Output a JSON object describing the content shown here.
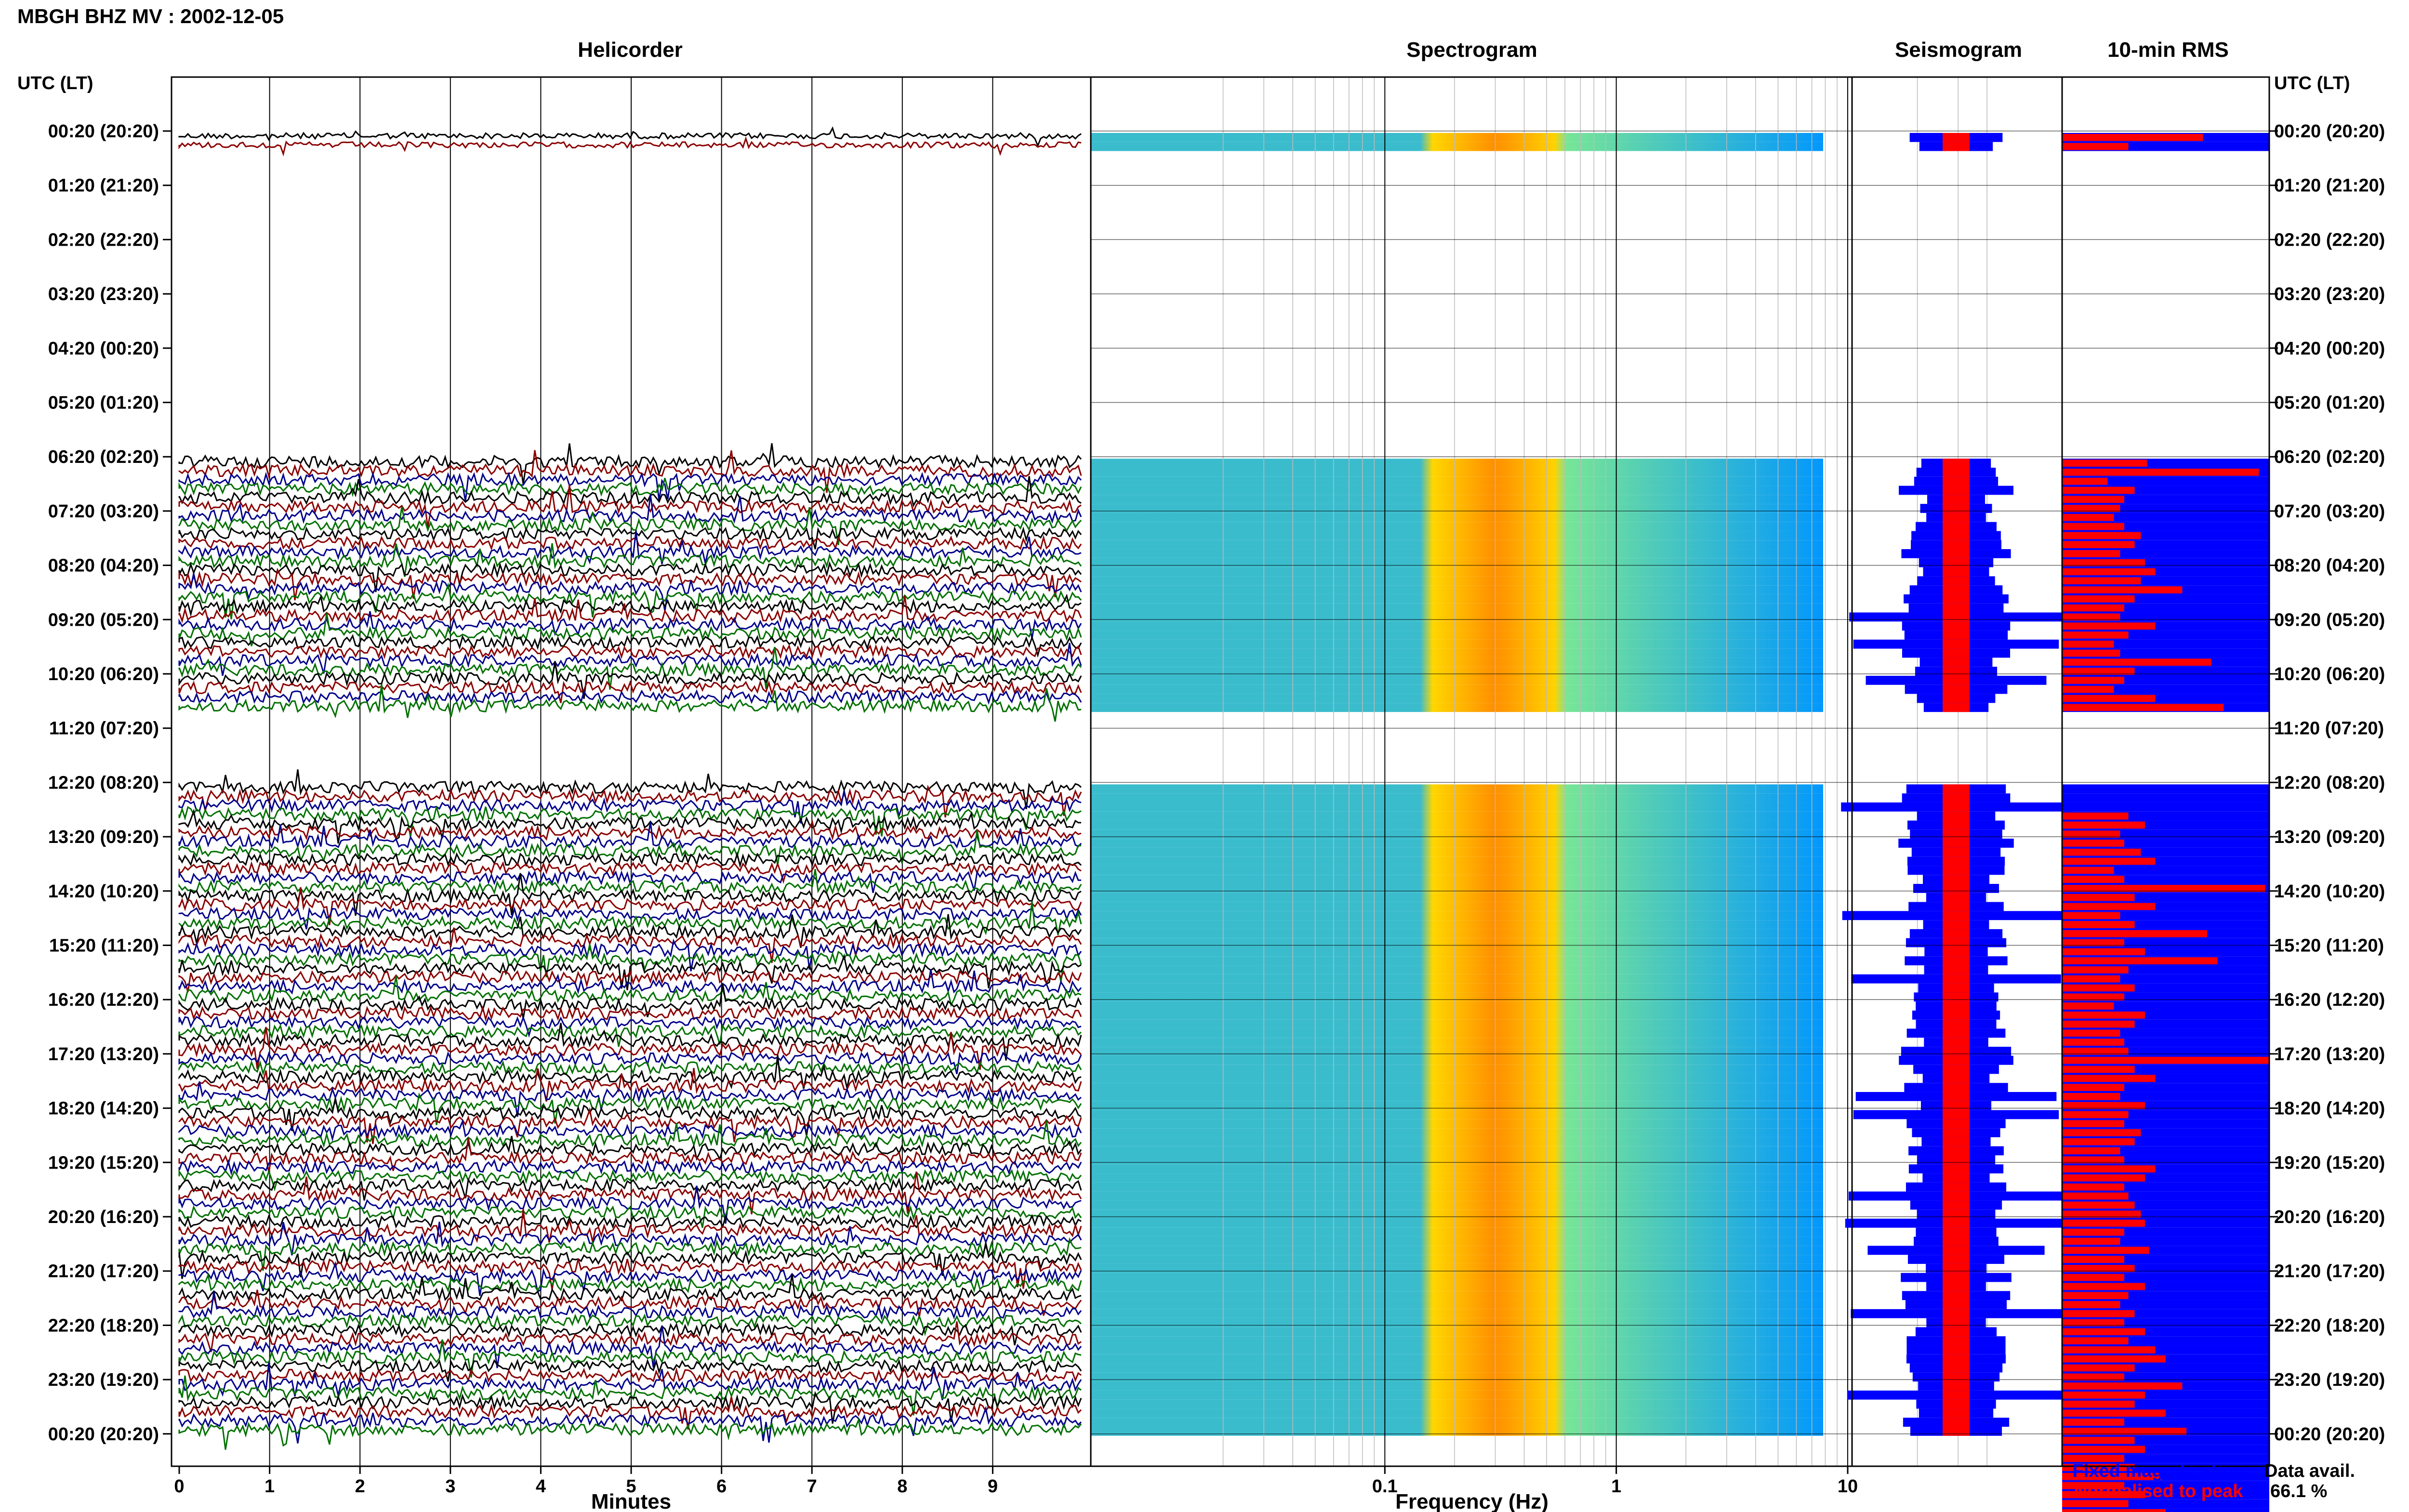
{
  "header": {
    "station_title": "MBGH BHZ MV : 2002-12-05",
    "utc_left": "UTC (LT)",
    "utc_right": "UTC (LT)"
  },
  "panels": {
    "helicorder": "Helicorder",
    "spectrogram": "Spectrogram",
    "seismogram": "Seismogram",
    "rms": "10-min RMS"
  },
  "time_labels": [
    "00:20 (20:20)",
    "01:20 (21:20)",
    "02:20 (22:20)",
    "03:20 (23:20)",
    "04:20 (00:20)",
    "05:20 (01:20)",
    "06:20 (02:20)",
    "07:20 (03:20)",
    "08:20 (04:20)",
    "09:20 (05:20)",
    "10:20 (06:20)",
    "11:20 (07:20)",
    "12:20 (08:20)",
    "13:20 (09:20)",
    "14:20 (10:20)",
    "15:20 (11:20)",
    "16:20 (12:20)",
    "17:20 (13:20)",
    "18:20 (14:20)",
    "19:20 (15:20)",
    "20:20 (16:20)",
    "21:20 (17:20)",
    "22:20 (18:20)",
    "23:20 (19:20)",
    "00:20 (20:20)"
  ],
  "axes": {
    "minutes_ticks": [
      "0",
      "1",
      "2",
      "3",
      "4",
      "5",
      "6",
      "7",
      "8",
      "9"
    ],
    "minutes_label": "Minutes",
    "frequency_ticks": [
      "0.1",
      "1",
      "10"
    ],
    "frequency_label": "Frequency (Hz)"
  },
  "legend": {
    "fixed": "Fixed magnification",
    "normalised": "Normalised to peak",
    "fixed_color": "#0000ff",
    "normalised_color": "#ff0000"
  },
  "data_avail": {
    "label": "Data avail.",
    "value": "66.1 %"
  },
  "colors": {
    "trace_cycle": [
      "#000000",
      "#8b0000",
      "#00008b",
      "#007000"
    ],
    "spectrogram_low": "#0000a0",
    "spectrogram_high": "#ff7f00",
    "rms_fixed": "#0000ff",
    "rms_normalised": "#ff0000"
  },
  "chart_data": {
    "type": "heatmap",
    "station": "MBGH BHZ MV",
    "date": "2002-12-05",
    "hour_rows": [
      "00:20",
      "01:20",
      "02:20",
      "03:20",
      "04:20",
      "05:20",
      "06:20",
      "07:20",
      "08:20",
      "09:20",
      "10:20",
      "11:20",
      "12:20",
      "13:20",
      "14:20",
      "15:20",
      "16:20",
      "17:20",
      "18:20",
      "19:20",
      "20:20",
      "21:20",
      "22:20",
      "23:20",
      "00:20"
    ],
    "xlabel_helicorder": "Minutes",
    "xlim_helicorder": [
      0,
      10
    ],
    "xlabel_spectrogram": "Frequency (Hz)",
    "xlim_spectrogram_hz": [
      0.02,
      40
    ],
    "spectrogram_log_scale": true,
    "data_available_percent": 66.1,
    "data_gaps_utc": [
      [
        "00:40",
        "06:20"
      ],
      [
        "11:00",
        "12:20"
      ]
    ],
    "rms_normalised_fraction_per_10min": [
      0.68,
      0.32,
      0,
      0,
      0,
      0,
      0,
      0,
      0,
      0,
      0,
      0,
      0,
      0,
      0,
      0,
      0,
      0,
      0,
      0,
      0,
      0,
      0,
      0,
      0,
      0,
      0,
      0,
      0,
      0,
      0,
      0,
      0,
      0,
      0,
      0,
      0.41,
      0.95,
      0.22,
      0.35,
      0.3,
      0.28,
      0.25,
      0.3,
      0.38,
      0.35,
      0.28,
      0.4,
      0.45,
      0.38,
      0.58,
      0.35,
      0.3,
      0.28,
      0.45,
      0.32,
      0.25,
      0.28,
      0.72,
      0.35,
      0.3,
      0.25,
      0.45,
      0.78,
      0.3,
      0.25,
      0,
      0,
      0,
      0,
      0,
      0,
      0,
      0,
      0,
      0.32,
      0.4,
      0.28,
      0.3,
      0.38,
      0.45,
      0.25,
      0.3,
      0.98,
      0.35,
      0.45,
      0.28,
      0.35,
      0.7,
      0.3,
      0.4,
      0.75,
      0.32,
      0.28,
      0.35,
      0.3,
      0.25,
      0.4,
      0.35,
      0.28,
      0.3,
      0.32,
      1.0,
      0.35,
      0.45,
      0.3,
      0.28,
      0.4,
      0.32,
      0.3,
      0.38,
      0.35,
      0.28,
      0.3,
      0.45,
      0.4,
      0.3,
      0.32,
      0.35,
      0.38,
      0.4,
      0.3,
      0.28,
      0.42,
      0.3,
      0.35,
      0.3,
      0.4,
      0.32,
      0.28,
      0.35,
      0.3,
      0.4,
      0.32,
      0.45,
      0.5,
      0.35,
      0.3,
      0.58,
      0.4,
      0.35,
      0.5,
      0.3,
      0.6,
      0.35,
      0.4,
      0.3,
      0.35,
      0.48,
      0.3,
      0.4,
      0.32,
      0.5,
      0.35,
      0.28,
      0.45,
      0.3,
      0.58
    ]
  }
}
